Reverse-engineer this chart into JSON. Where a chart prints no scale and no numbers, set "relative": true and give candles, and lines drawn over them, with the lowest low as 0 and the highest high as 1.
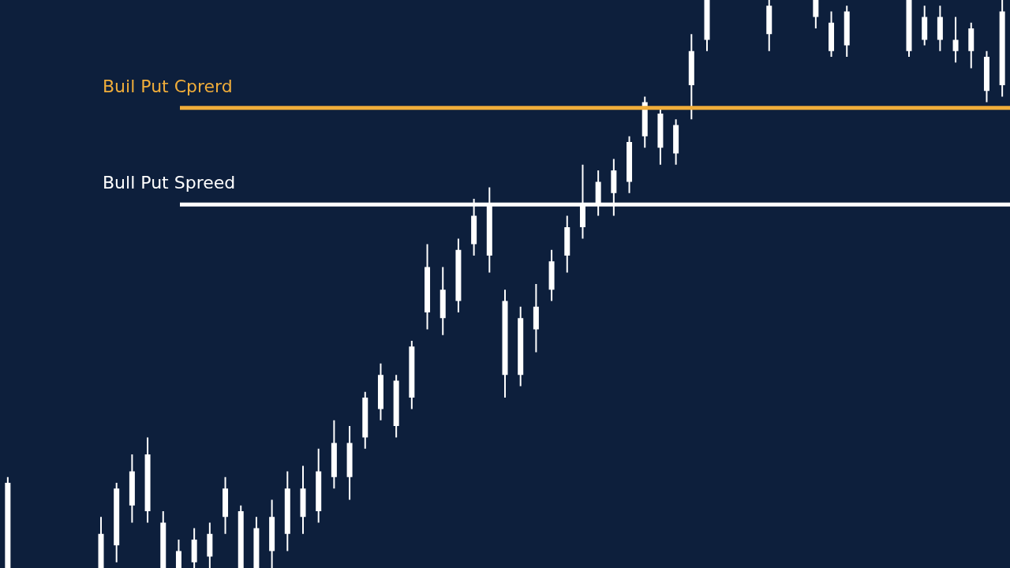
{
  "chart_data": {
    "type": "candlestick",
    "relative": true,
    "categories": [
      null,
      null,
      null,
      null,
      null,
      null,
      null,
      null,
      null,
      null,
      null,
      null,
      null,
      null,
      null,
      null,
      null,
      null,
      null,
      null,
      null,
      null,
      null,
      null,
      null,
      null,
      null,
      null,
      null,
      null,
      null,
      null,
      null,
      null,
      null,
      null,
      null,
      null,
      null,
      null,
      null,
      null,
      null,
      null,
      null,
      null,
      null,
      null,
      null,
      null,
      null,
      null,
      null,
      null,
      null,
      null,
      null,
      null,
      null,
      null,
      null,
      null,
      null,
      null,
      null
    ],
    "ohlc": [
      [
        0,
        0.16,
        0,
        0.15
      ],
      null,
      null,
      null,
      null,
      null,
      [
        0,
        0.09,
        0,
        0.06
      ],
      [
        0.04,
        0.15,
        0.01,
        0.14
      ],
      [
        0.11,
        0.2,
        0.08,
        0.17
      ],
      [
        0.1,
        0.23,
        0.08,
        0.2
      ],
      [
        0,
        0.1,
        0,
        0.08
      ],
      [
        0,
        0.05,
        0,
        0.03
      ],
      [
        0.01,
        0.07,
        0,
        0.05
      ],
      [
        0.02,
        0.08,
        0,
        0.06
      ],
      [
        0.09,
        0.16,
        0.06,
        0.14
      ],
      [
        0,
        0.11,
        0,
        0.1
      ],
      [
        0,
        0.09,
        0,
        0.07
      ],
      [
        0.03,
        0.12,
        0,
        0.09
      ],
      [
        0.06,
        0.17,
        0.03,
        0.14
      ],
      [
        0.09,
        0.18,
        0.06,
        0.14
      ],
      [
        0.1,
        0.21,
        0.08,
        0.17
      ],
      [
        0.16,
        0.26,
        0.14,
        0.22
      ],
      [
        0.16,
        0.25,
        0.12,
        0.22
      ],
      [
        0.23,
        0.31,
        0.21,
        0.3
      ],
      [
        0.28,
        0.36,
        0.26,
        0.34
      ],
      [
        0.25,
        0.34,
        0.23,
        0.33
      ],
      [
        0.3,
        0.4,
        0.28,
        0.39
      ],
      [
        0.45,
        0.57,
        0.42,
        0.53
      ],
      [
        0.44,
        0.53,
        0.41,
        0.49
      ],
      [
        0.47,
        0.58,
        0.45,
        0.56
      ],
      [
        0.57,
        0.65,
        0.55,
        0.62
      ],
      [
        0.55,
        0.67,
        0.52,
        0.64
      ],
      [
        0.34,
        0.49,
        0.3,
        0.47
      ],
      [
        0.34,
        0.46,
        0.32,
        0.44
      ],
      [
        0.42,
        0.5,
        0.38,
        0.46
      ],
      [
        0.49,
        0.56,
        0.47,
        0.54
      ],
      [
        0.55,
        0.62,
        0.52,
        0.6
      ],
      [
        0.6,
        0.71,
        0.58,
        0.64
      ],
      [
        0.64,
        0.7,
        0.62,
        0.68
      ],
      [
        0.66,
        0.72,
        0.62,
        0.7
      ],
      [
        0.68,
        0.76,
        0.66,
        0.75
      ],
      [
        0.76,
        0.83,
        0.74,
        0.82
      ],
      [
        0.74,
        0.81,
        0.71,
        0.8
      ],
      [
        0.73,
        0.79,
        0.71,
        0.78
      ],
      [
        0.85,
        0.94,
        0.79,
        0.91
      ],
      [
        0.93,
        1,
        0.91,
        1
      ],
      null,
      null,
      null,
      [
        0.94,
        1,
        0.91,
        0.99
      ],
      null,
      null,
      [
        0.97,
        1,
        0.95,
        1
      ],
      [
        0.91,
        0.98,
        0.9,
        0.96
      ],
      [
        0.92,
        0.99,
        0.9,
        0.98
      ],
      null,
      null,
      null,
      [
        0.91,
        1,
        0.9,
        1
      ],
      [
        0.93,
        0.99,
        0.92,
        0.97
      ],
      [
        0.93,
        0.99,
        0.91,
        0.97
      ],
      [
        0.91,
        0.97,
        0.89,
        0.93
      ],
      [
        0.91,
        0.96,
        0.88,
        0.95
      ],
      [
        0.84,
        0.91,
        0.82,
        0.9
      ],
      [
        0.85,
        1,
        0.83,
        0.98
      ]
    ],
    "color": "#ffffff",
    "ref_lines": [
      {
        "axis": "y",
        "value": 0.81,
        "label": "Buil Put Cprerd",
        "color": "#f0ad3a"
      },
      {
        "axis": "y",
        "value": 0.64,
        "label": "Bull Put Spreed",
        "color": "#ffffff"
      }
    ]
  }
}
